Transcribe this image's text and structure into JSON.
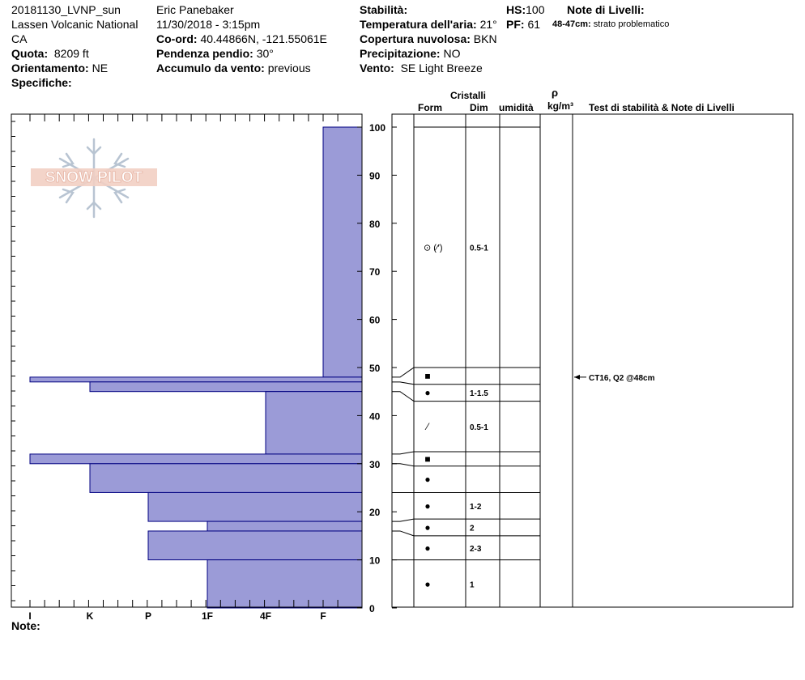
{
  "header": {
    "col1": {
      "line1": "20181130_LVNP_sun",
      "line2": "Lassen Volcanic National",
      "line3": "CA",
      "elev_label": "Quota:",
      "elev_value": "8209 ft",
      "aspect_label": "Orientamento:",
      "aspect_value": "NE",
      "specifics_label": "Specifiche:"
    },
    "col2": {
      "observer": "Eric Panebaker",
      "datetime": "11/30/2018 - 3:15pm",
      "coord_label": "Co-ord:",
      "coord_value": "40.44866N, -121.55061E",
      "slope_label": "Pendenza pendio:",
      "slope_value": "30°",
      "wind_load_label": "Accumulo da vento:",
      "wind_load_value": "previous"
    },
    "col3": {
      "stability_label": "Stabilità:",
      "hs_label": "HS:",
      "hs_value": "100",
      "air_temp_label": "Temperatura dell'aria:",
      "air_temp_value": "21°",
      "pf_label": "PF:",
      "pf_value": "61",
      "cloud_label": "Copertura nuvolosa:",
      "cloud_value": "BKN",
      "precip_label": "Precipitazione:",
      "precip_value": "NO",
      "wind_label": "Vento:",
      "wind_value": "SE  Light Breeze"
    },
    "col4": {
      "layer_notes_label": "Note di Livelli:",
      "layer_note_range": "48-47cm:",
      "layer_note_text": "strato problematico"
    }
  },
  "logo_text": "SNOW PILOT",
  "footer": {
    "note_label": "Note:"
  },
  "columns": {
    "cristalli": "Cristalli",
    "form": "Form",
    "dim": "Dim",
    "umidita": "umidità",
    "rho": "ρ",
    "density_unit": "kg/m³",
    "tests": "Test di stabilità & Note di Livelli"
  },
  "colors": {
    "bar_fill": "#9b9bd7",
    "bar_stroke": "#000080"
  },
  "chart_data": {
    "type": "bar",
    "orientation": "horizontal",
    "x_categories": [
      "I",
      "K",
      "P",
      "1F",
      "4F",
      "F"
    ],
    "y_ticks": [
      0,
      10,
      20,
      30,
      40,
      50,
      60,
      70,
      80,
      90,
      100
    ],
    "ylim": [
      0,
      100
    ],
    "hardness_profile": [
      {
        "bottom": 48,
        "top": 100,
        "hardness": "F"
      },
      {
        "bottom": 47,
        "top": 48,
        "hardness": "I"
      },
      {
        "bottom": 45,
        "top": 47,
        "hardness": "K"
      },
      {
        "bottom": 32,
        "top": 45,
        "hardness": "4F"
      },
      {
        "bottom": 30,
        "top": 32,
        "hardness": "I"
      },
      {
        "bottom": 24,
        "top": 30,
        "hardness": "K"
      },
      {
        "bottom": 18,
        "top": 24,
        "hardness": "P"
      },
      {
        "bottom": 16,
        "top": 18,
        "hardness": "1F"
      },
      {
        "bottom": 10,
        "top": 16,
        "hardness": "P"
      },
      {
        "bottom": 0,
        "top": 10,
        "hardness": "1F"
      }
    ],
    "layers": [
      {
        "bottom": 50,
        "top": 100,
        "form": "⊙ (⁄′)",
        "dim": "0.5-1"
      },
      {
        "bottom": 46.5,
        "top": 50,
        "form": "■",
        "dim": ""
      },
      {
        "bottom": 43,
        "top": 46.5,
        "form": "●",
        "dim": "1-1.5"
      },
      {
        "bottom": 32.5,
        "top": 43,
        "form": "⁄",
        "dim": "0.5-1"
      },
      {
        "bottom": 29.5,
        "top": 32.5,
        "form": "■",
        "dim": ""
      },
      {
        "bottom": 24,
        "top": 29.5,
        "form": "●",
        "dim": ""
      },
      {
        "bottom": 18.5,
        "top": 24,
        "form": "●",
        "dim": "1-2"
      },
      {
        "bottom": 15,
        "top": 18.5,
        "form": "●",
        "dim": "2"
      },
      {
        "bottom": 10,
        "top": 15,
        "form": "●",
        "dim": "2-3"
      },
      {
        "bottom": 0,
        "top": 10,
        "form": "●",
        "dim": "1"
      }
    ],
    "test_note": {
      "depth": 48,
      "text": "CT16, Q2 @48cm"
    }
  }
}
